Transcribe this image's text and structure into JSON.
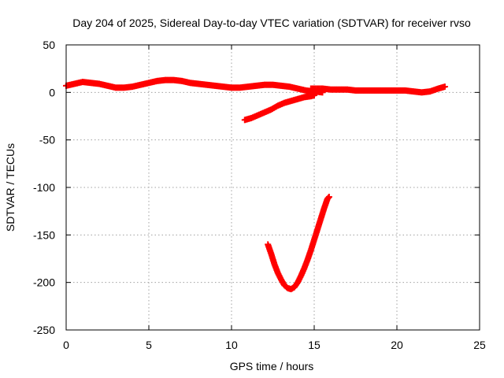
{
  "chart_data": {
    "type": "scatter",
    "title": "Day 204 of 2025, Sidereal Day-to-day VTEC variation (SDTVAR) for receiver rvso",
    "xlabel": "GPS time / hours",
    "ylabel": "SDTVAR / TECUs",
    "xlim": [
      0,
      25
    ],
    "ylim": [
      -250,
      50
    ],
    "xticks": [
      0,
      5,
      10,
      15,
      20,
      25
    ],
    "yticks": [
      -250,
      -200,
      -150,
      -100,
      -50,
      0,
      50
    ],
    "grid": true,
    "legend": "none",
    "marker_color": "#ff0000",
    "series": [
      {
        "values": [
          [
            0.0,
            7
          ],
          [
            0.5,
            9
          ],
          [
            1.0,
            11
          ],
          [
            1.5,
            10
          ],
          [
            2.0,
            9
          ],
          [
            2.5,
            7
          ],
          [
            3.0,
            5
          ],
          [
            3.5,
            5
          ],
          [
            4.0,
            6
          ],
          [
            4.5,
            8
          ],
          [
            5.0,
            10
          ],
          [
            5.5,
            12
          ],
          [
            6.0,
            13
          ],
          [
            6.5,
            13
          ],
          [
            7.0,
            12
          ],
          [
            7.5,
            10
          ],
          [
            8.0,
            9
          ],
          [
            8.5,
            8
          ],
          [
            9.0,
            7
          ],
          [
            9.5,
            6
          ],
          [
            10.0,
            5
          ],
          [
            10.5,
            5
          ],
          [
            11.0,
            6
          ],
          [
            11.5,
            7
          ],
          [
            12.0,
            8
          ],
          [
            12.5,
            8
          ],
          [
            13.0,
            7
          ],
          [
            13.5,
            6
          ],
          [
            14.0,
            4
          ],
          [
            14.5,
            2
          ],
          [
            15.0,
            1
          ],
          [
            15.5,
            0
          ]
        ]
      },
      {
        "values": [
          [
            14.8,
            4
          ],
          [
            15.5,
            4
          ],
          [
            16.0,
            3
          ],
          [
            16.5,
            3
          ],
          [
            17.0,
            3
          ],
          [
            17.5,
            2
          ],
          [
            18.0,
            2
          ],
          [
            18.5,
            2
          ],
          [
            19.0,
            2
          ],
          [
            19.5,
            2
          ],
          [
            20.0,
            2
          ],
          [
            20.5,
            2
          ],
          [
            21.0,
            1
          ],
          [
            21.5,
            0
          ],
          [
            22.0,
            1
          ],
          [
            22.5,
            4
          ],
          [
            22.9,
            6
          ]
        ]
      },
      {
        "values": [
          [
            10.8,
            -29
          ],
          [
            11.2,
            -27
          ],
          [
            11.6,
            -24
          ],
          [
            12.0,
            -21
          ],
          [
            12.4,
            -18
          ],
          [
            12.8,
            -14
          ],
          [
            13.2,
            -11
          ],
          [
            13.6,
            -9
          ],
          [
            14.0,
            -7
          ],
          [
            14.4,
            -5
          ],
          [
            14.8,
            -4
          ],
          [
            15.0,
            -3
          ]
        ]
      },
      {
        "values": [
          [
            12.2,
            -160
          ],
          [
            12.4,
            -170
          ],
          [
            12.6,
            -181
          ],
          [
            12.8,
            -190
          ],
          [
            13.0,
            -197
          ],
          [
            13.2,
            -203
          ],
          [
            13.4,
            -206
          ],
          [
            13.6,
            -207
          ],
          [
            13.8,
            -205
          ],
          [
            14.0,
            -200
          ],
          [
            14.2,
            -193
          ],
          [
            14.4,
            -185
          ],
          [
            14.6,
            -176
          ],
          [
            14.8,
            -166
          ],
          [
            15.0,
            -155
          ],
          [
            15.2,
            -144
          ],
          [
            15.4,
            -133
          ],
          [
            15.6,
            -122
          ],
          [
            15.8,
            -112
          ],
          [
            15.9,
            -110
          ]
        ]
      }
    ]
  }
}
